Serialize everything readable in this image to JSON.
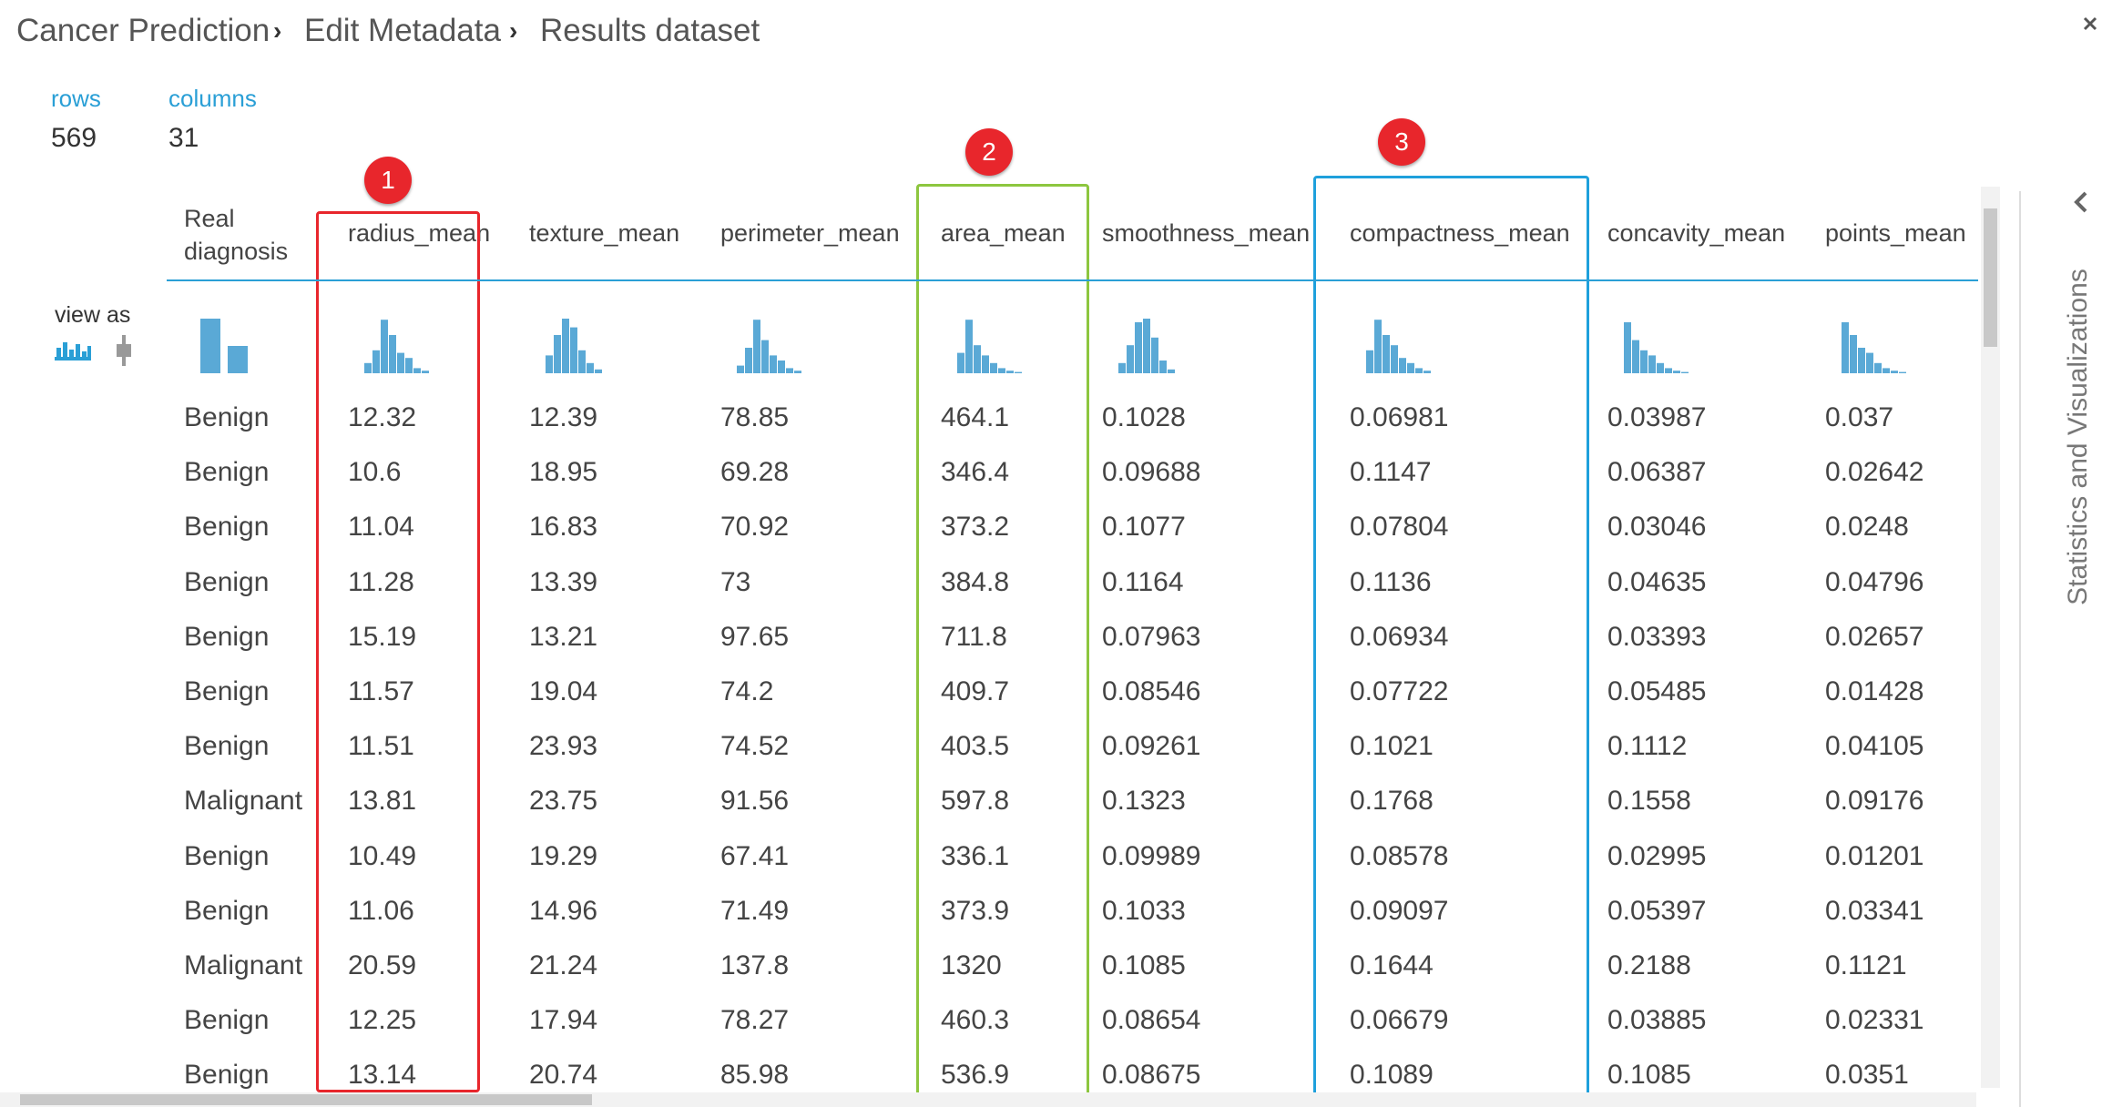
{
  "breadcrumb": [
    "Cancer Prediction",
    "Edit Metadata",
    "Results dataset"
  ],
  "stats": {
    "rows_label": "rows",
    "rows": "569",
    "columns_label": "columns",
    "columns": "31"
  },
  "view_as": "view as",
  "table": {
    "headers": [
      "Real diagnosis",
      "radius_mean",
      "texture_mean",
      "perimeter_mean",
      "area_mean",
      "smoothness_mean",
      "compactness_mean",
      "concavity_mean",
      "points_mean"
    ],
    "rows": [
      [
        "Benign",
        "12.32",
        "12.39",
        "78.85",
        "464.1",
        "0.1028",
        "0.06981",
        "0.03987",
        "0.037"
      ],
      [
        "Benign",
        "10.6",
        "18.95",
        "69.28",
        "346.4",
        "0.09688",
        "0.1147",
        "0.06387",
        "0.02642"
      ],
      [
        "Benign",
        "11.04",
        "16.83",
        "70.92",
        "373.2",
        "0.1077",
        "0.07804",
        "0.03046",
        "0.0248"
      ],
      [
        "Benign",
        "11.28",
        "13.39",
        "73",
        "384.8",
        "0.1164",
        "0.1136",
        "0.04635",
        "0.04796"
      ],
      [
        "Benign",
        "15.19",
        "13.21",
        "97.65",
        "711.8",
        "0.07963",
        "0.06934",
        "0.03393",
        "0.02657"
      ],
      [
        "Benign",
        "11.57",
        "19.04",
        "74.2",
        "409.7",
        "0.08546",
        "0.07722",
        "0.05485",
        "0.01428"
      ],
      [
        "Benign",
        "11.51",
        "23.93",
        "74.52",
        "403.5",
        "0.09261",
        "0.1021",
        "0.1112",
        "0.04105"
      ],
      [
        "Malignant",
        "13.81",
        "23.75",
        "91.56",
        "597.8",
        "0.1323",
        "0.1768",
        "0.1558",
        "0.09176"
      ],
      [
        "Benign",
        "10.49",
        "19.29",
        "67.41",
        "336.1",
        "0.09989",
        "0.08578",
        "0.02995",
        "0.01201"
      ],
      [
        "Benign",
        "11.06",
        "14.96",
        "71.49",
        "373.9",
        "0.1033",
        "0.09097",
        "0.05397",
        "0.03341"
      ],
      [
        "Malignant",
        "20.59",
        "21.24",
        "137.8",
        "1320",
        "0.1085",
        "0.1644",
        "0.2188",
        "0.1121"
      ],
      [
        "Benign",
        "12.25",
        "17.94",
        "78.27",
        "460.3",
        "0.08654",
        "0.06679",
        "0.03885",
        "0.02331"
      ],
      [
        "Benign",
        "13.14",
        "20.74",
        "85.98",
        "536.9",
        "0.08675",
        "0.1089",
        "0.1085",
        "0.0351"
      ]
    ]
  },
  "annotations": [
    "1",
    "2",
    "3"
  ],
  "side_panel": "Statistics and Visualizations"
}
